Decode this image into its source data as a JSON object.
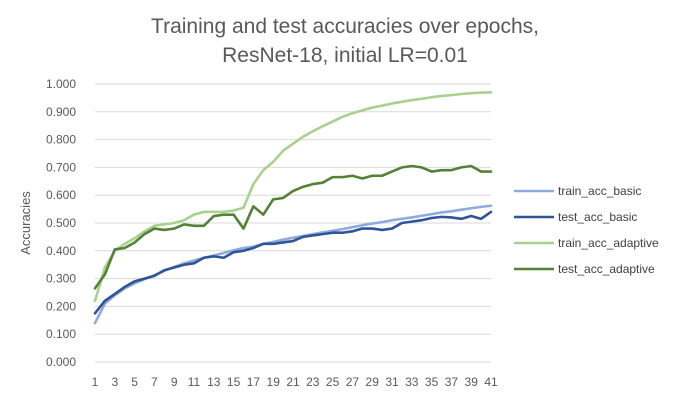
{
  "chart_data": {
    "type": "line",
    "title_lines": [
      "Training and test accuracies over epochs,",
      "ResNet-18, initial LR=0.01"
    ],
    "xlabel": "",
    "ylabel": "Accuracies",
    "x": [
      1,
      2,
      3,
      4,
      5,
      6,
      7,
      8,
      9,
      10,
      11,
      12,
      13,
      14,
      15,
      16,
      17,
      18,
      19,
      20,
      21,
      22,
      23,
      24,
      25,
      26,
      27,
      28,
      29,
      30,
      31,
      32,
      33,
      34,
      35,
      36,
      37,
      38,
      39,
      40,
      41
    ],
    "x_tick_labels": [
      "1",
      "3",
      "5",
      "7",
      "9",
      "11",
      "13",
      "15",
      "17",
      "19",
      "21",
      "23",
      "25",
      "27",
      "29",
      "31",
      "33",
      "35",
      "37",
      "39",
      "41"
    ],
    "ylim": [
      0,
      1
    ],
    "y_tick_labels": [
      "0.000",
      "0.100",
      "0.200",
      "0.300",
      "0.400",
      "0.500",
      "0.600",
      "0.700",
      "0.800",
      "0.900",
      "1.000"
    ],
    "grid": true,
    "legend_position": "right",
    "series": [
      {
        "name": "train_acc_basic",
        "color": "#8faadc",
        "values": [
          0.14,
          0.21,
          0.24,
          0.265,
          0.283,
          0.298,
          0.312,
          0.328,
          0.342,
          0.355,
          0.365,
          0.375,
          0.383,
          0.392,
          0.402,
          0.41,
          0.415,
          0.425,
          0.432,
          0.44,
          0.447,
          0.453,
          0.46,
          0.466,
          0.472,
          0.478,
          0.485,
          0.492,
          0.498,
          0.503,
          0.51,
          0.515,
          0.52,
          0.526,
          0.532,
          0.538,
          0.542,
          0.548,
          0.553,
          0.558,
          0.562
        ]
      },
      {
        "name": "test_acc_basic",
        "color": "#2f5597",
        "values": [
          0.175,
          0.22,
          0.245,
          0.27,
          0.29,
          0.3,
          0.31,
          0.33,
          0.34,
          0.35,
          0.355,
          0.375,
          0.38,
          0.375,
          0.395,
          0.4,
          0.41,
          0.425,
          0.425,
          0.43,
          0.435,
          0.45,
          0.455,
          0.46,
          0.465,
          0.465,
          0.47,
          0.48,
          0.48,
          0.475,
          0.48,
          0.5,
          0.505,
          0.51,
          0.518,
          0.522,
          0.52,
          0.515,
          0.525,
          0.515,
          0.54
        ]
      },
      {
        "name": "train_acc_adaptive",
        "color": "#a9d18e",
        "values": [
          0.22,
          0.34,
          0.4,
          0.425,
          0.445,
          0.47,
          0.49,
          0.495,
          0.5,
          0.51,
          0.53,
          0.54,
          0.54,
          0.54,
          0.545,
          0.555,
          0.64,
          0.69,
          0.72,
          0.76,
          0.785,
          0.81,
          0.83,
          0.848,
          0.865,
          0.882,
          0.895,
          0.905,
          0.915,
          0.922,
          0.93,
          0.936,
          0.942,
          0.947,
          0.952,
          0.957,
          0.96,
          0.964,
          0.967,
          0.969,
          0.97
        ]
      },
      {
        "name": "test_acc_adaptive",
        "color": "#548235",
        "values": [
          0.265,
          0.315,
          0.405,
          0.41,
          0.43,
          0.46,
          0.48,
          0.475,
          0.48,
          0.495,
          0.49,
          0.49,
          0.525,
          0.53,
          0.53,
          0.48,
          0.56,
          0.53,
          0.585,
          0.59,
          0.615,
          0.63,
          0.64,
          0.645,
          0.665,
          0.665,
          0.67,
          0.66,
          0.67,
          0.67,
          0.685,
          0.7,
          0.705,
          0.7,
          0.685,
          0.69,
          0.69,
          0.7,
          0.705,
          0.685,
          0.685
        ]
      }
    ]
  }
}
